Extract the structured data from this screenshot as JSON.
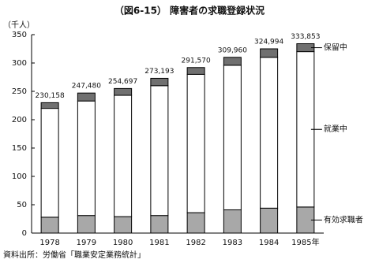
{
  "chart_data": {
    "type": "stacked-bar",
    "title": "（図6-15） 障害者の求職登録状況",
    "y_label": "（千人）",
    "source": "資料出所：労働省「職業安定業務統計」",
    "categories": [
      "1978",
      "1979",
      "1980",
      "1981",
      "1982",
      "1983",
      "1984",
      "1985年"
    ],
    "series": [
      {
        "name": "有効求職者",
        "color": "#a8a8a8",
        "values": [
          28,
          31,
          29,
          31,
          36,
          41,
          44,
          46
        ]
      },
      {
        "name": "就業中",
        "color": "#ffffff",
        "values": [
          192,
          202,
          214,
          229,
          244,
          255,
          266,
          274
        ]
      },
      {
        "name": "保留中",
        "color": "#707070",
        "values": [
          10,
          14,
          12,
          13,
          12,
          14,
          15,
          14
        ]
      }
    ],
    "totals": {
      "values": [
        230.158,
        247.48,
        254.697,
        273.193,
        291.57,
        309.96,
        324.994,
        333.853
      ],
      "value_labels": [
        "230,158",
        "247,480",
        "254,697",
        "273,193",
        "291,570",
        "309,960",
        "324,994",
        "333,853"
      ]
    },
    "ylim": [
      0,
      350
    ],
    "yticks": [
      0,
      50,
      100,
      150,
      200,
      250,
      300,
      350
    ],
    "grid": false
  }
}
